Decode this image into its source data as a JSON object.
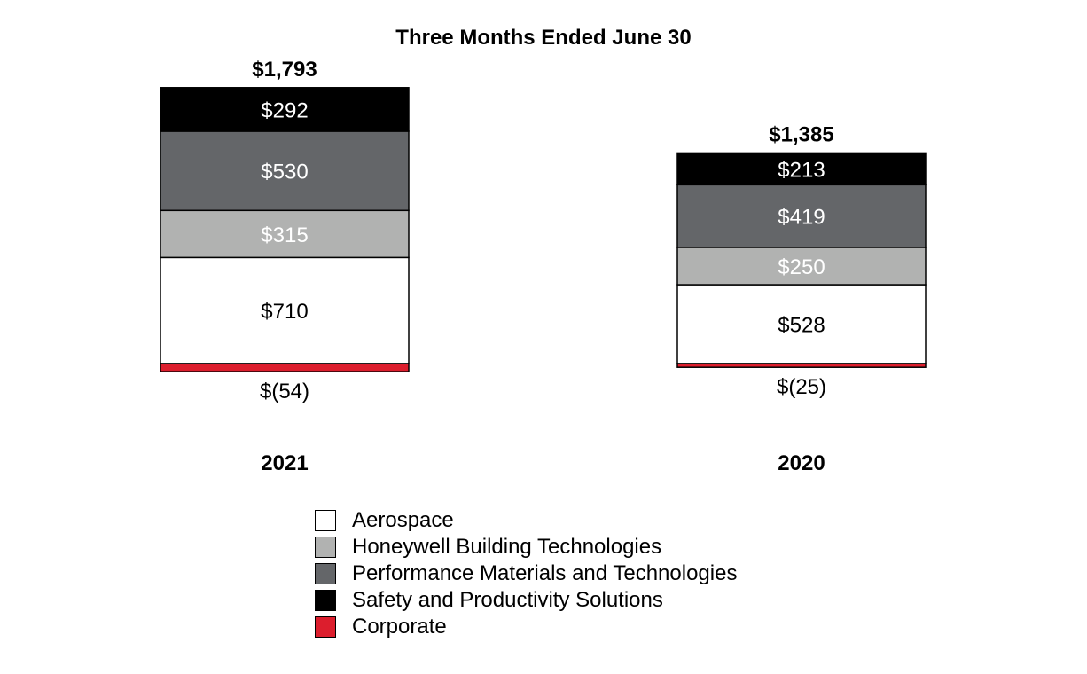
{
  "chart_data": {
    "type": "bar",
    "stacked": true,
    "title": "Three Months Ended June 30",
    "categories": [
      "2021",
      "2020"
    ],
    "totals": [
      "$1,793",
      "$1,385"
    ],
    "series": [
      {
        "name": "Aerospace",
        "values": [
          710,
          528
        ],
        "labels": [
          "$710",
          "$528"
        ],
        "color": "#ffffff",
        "label_color": "#000000"
      },
      {
        "name": "Honeywell Building Technologies",
        "values": [
          315,
          250
        ],
        "labels": [
          "$315",
          "$250"
        ],
        "color": "#b1b2b1",
        "label_color": "#ffffff"
      },
      {
        "name": "Performance Materials and Technologies",
        "values": [
          530,
          419
        ],
        "labels": [
          "$530",
          "$419"
        ],
        "color": "#646669",
        "label_color": "#ffffff"
      },
      {
        "name": "Safety and Productivity Solutions",
        "values": [
          292,
          213
        ],
        "labels": [
          "$292",
          "$213"
        ],
        "color": "#000000",
        "label_color": "#ffffff"
      },
      {
        "name": "Corporate",
        "values": [
          -54,
          -25
        ],
        "labels": [
          "$(54)",
          "$(25)"
        ],
        "color": "#dc1e2d",
        "label_color": "#000000"
      }
    ],
    "legend_position": "bottom",
    "grid": false
  }
}
